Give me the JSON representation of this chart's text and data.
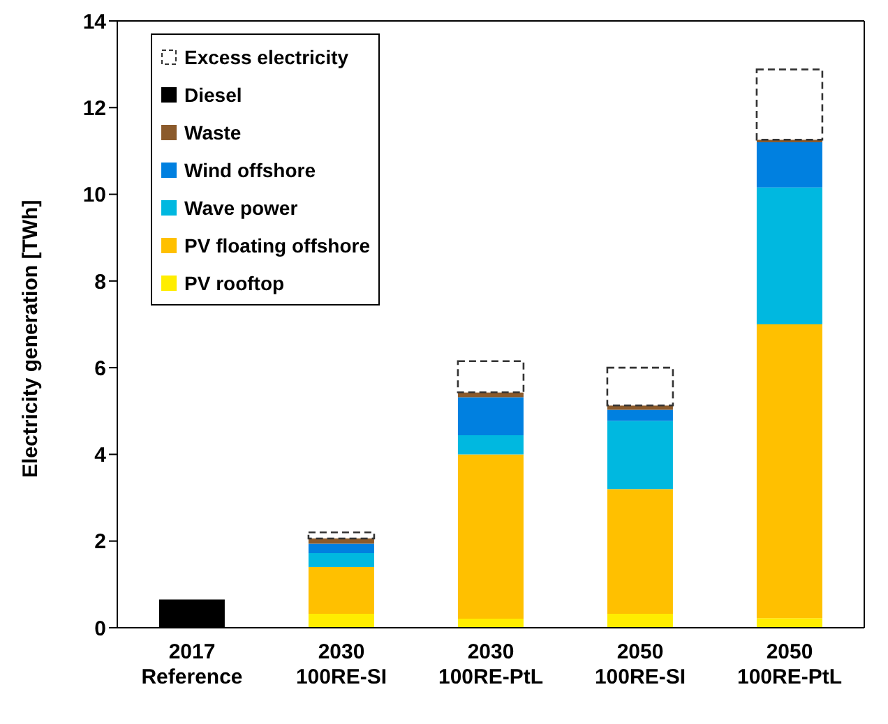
{
  "chart_data": {
    "type": "bar",
    "stacked": true,
    "ylabel": "Electricity generation [TWh]",
    "categories": [
      "2017\nReference",
      "2030\n100RE-SI",
      "2030\n100RE-PtL",
      "2050\n100RE-SI",
      "2050\n100RE-PtL"
    ],
    "series": [
      {
        "name": "PV rooftop",
        "color": "#ffed00",
        "values": [
          0,
          0.32,
          0.21,
          0.32,
          0.22
        ]
      },
      {
        "name": "PV floating offshore",
        "color": "#ffc000",
        "values": [
          0,
          1.08,
          3.79,
          2.88,
          6.78
        ]
      },
      {
        "name": "Wave power",
        "color": "#00b8e0",
        "values": [
          0,
          0.32,
          0.44,
          1.57,
          3.16
        ]
      },
      {
        "name": "Wind offshore",
        "color": "#0080e0",
        "values": [
          0,
          0.22,
          0.88,
          0.26,
          1.04
        ]
      },
      {
        "name": "Waste",
        "color": "#8b5a2b",
        "values": [
          0,
          0.12,
          0.11,
          0.1,
          0.06
        ]
      },
      {
        "name": "Diesel",
        "color": "#000000",
        "values": [
          0.65,
          0,
          0,
          0,
          0
        ]
      },
      {
        "name": "Excess electricity",
        "color": "#ffffff",
        "line_style": "dashed",
        "values": [
          0,
          0.14,
          0.72,
          0.87,
          1.62
        ]
      }
    ],
    "ylim": [
      0,
      14
    ],
    "yticks": [
      0,
      2,
      4,
      6,
      8,
      10,
      12,
      14
    ],
    "grid": false,
    "legend": "top left"
  }
}
